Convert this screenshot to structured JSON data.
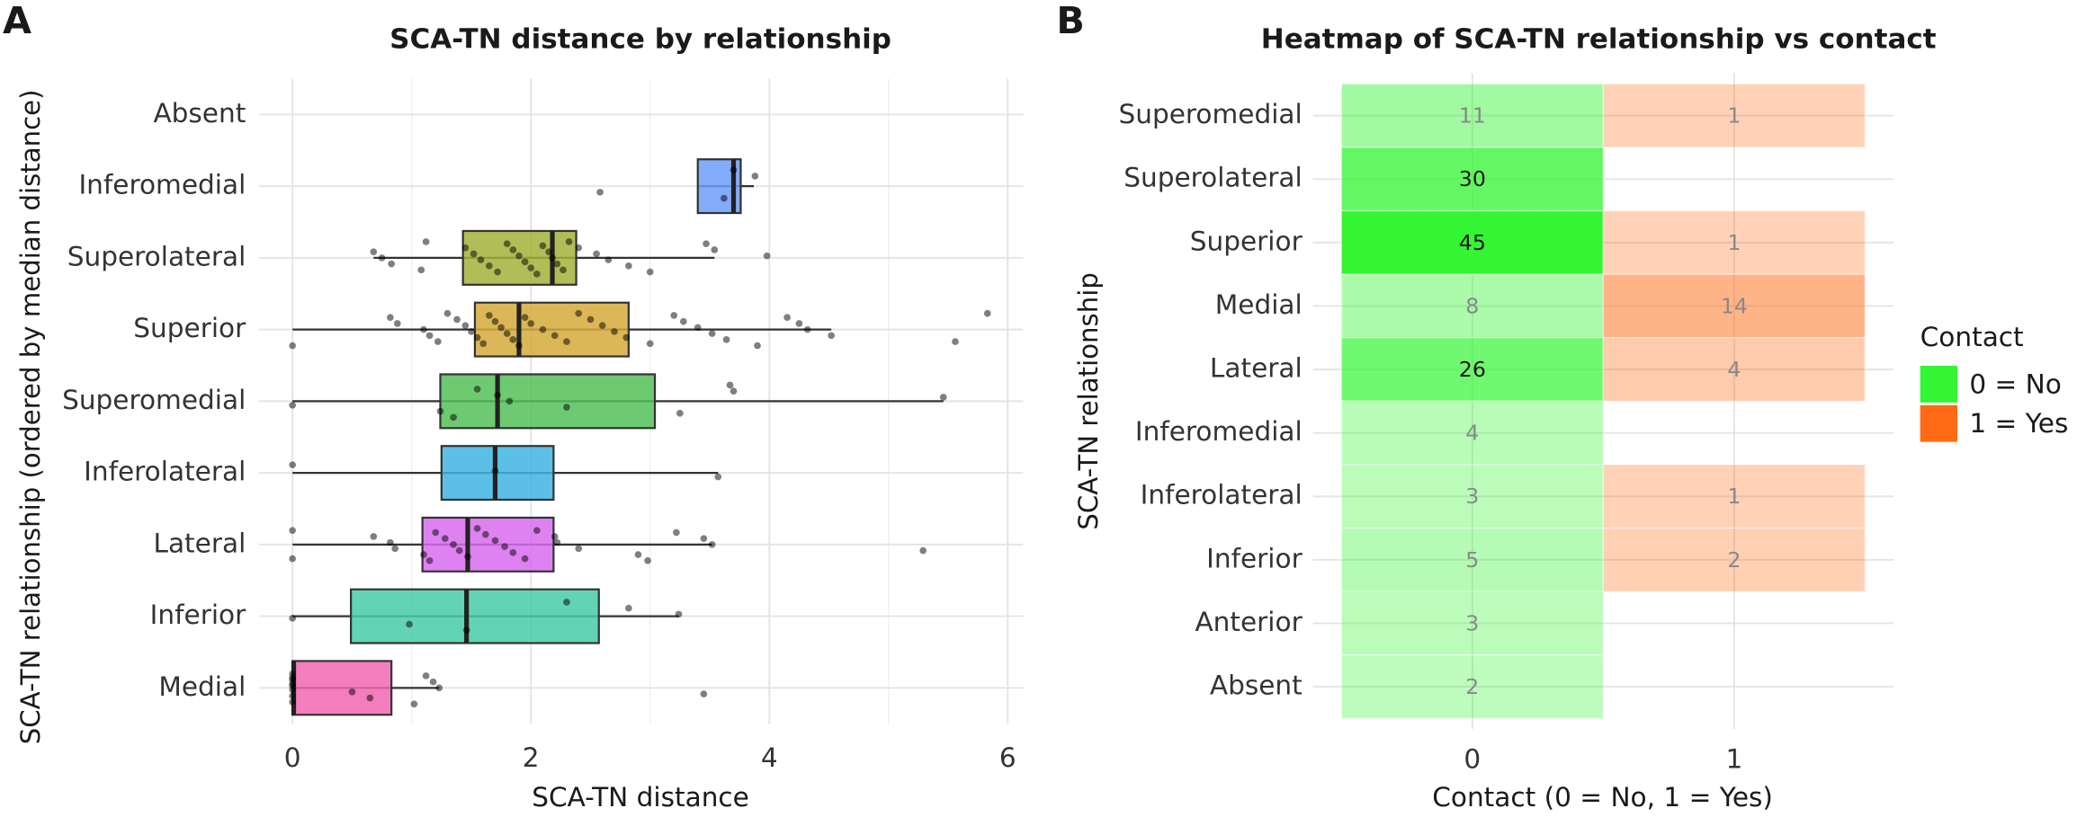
{
  "chart_data": [
    {
      "type": "box",
      "panel_label": "A",
      "title": "SCA-TN distance by relationship",
      "x_label": "SCA-TN distance",
      "y_label": "SCA-TN relationship (ordered by median distance)",
      "categories": [
        "Absent",
        "Inferomedial",
        "Superolateral",
        "Superior",
        "Superomedial",
        "Inferolateral",
        "Lateral",
        "Inferior",
        "Medial"
      ],
      "boxes": [
        null,
        {
          "color": "#6c9cf9",
          "min": 3.4,
          "q1": 3.4,
          "median": 3.7,
          "q3": 3.76,
          "max": 3.87,
          "points": [
            2.58,
            3.62,
            3.7,
            3.88
          ]
        },
        {
          "color": "#a3b13a",
          "min": 0.68,
          "q1": 1.43,
          "median": 2.18,
          "q3": 2.38,
          "max": 3.54,
          "points": [
            0.68,
            0.75,
            0.83,
            1.08,
            1.12,
            1.45,
            1.52,
            1.58,
            1.65,
            1.72,
            1.8,
            1.85,
            1.9,
            1.95,
            2.0,
            2.05,
            2.1,
            2.15,
            2.18,
            2.22,
            2.27,
            2.32,
            2.4,
            2.55,
            2.65,
            2.82,
            3.0,
            3.47,
            3.54,
            3.98
          ]
        },
        {
          "color": "#d6aa3a",
          "min": 0,
          "q1": 1.53,
          "median": 1.9,
          "q3": 2.82,
          "max": 4.52,
          "points": [
            0,
            0.82,
            0.88,
            1.1,
            1.15,
            1.22,
            1.3,
            1.38,
            1.45,
            1.5,
            1.55,
            1.6,
            1.65,
            1.7,
            1.75,
            1.8,
            1.85,
            1.9,
            1.95,
            2.0,
            2.1,
            2.2,
            2.3,
            2.4,
            2.5,
            2.6,
            2.7,
            2.8,
            3.0,
            3.2,
            3.28,
            3.4,
            3.52,
            3.64,
            3.9,
            4.15,
            4.25,
            4.32,
            4.52,
            5.56,
            5.83
          ]
        },
        {
          "color": "#53c158",
          "min": 0,
          "q1": 1.24,
          "median": 1.72,
          "q3": 3.04,
          "max": 5.46,
          "points": [
            0,
            1.24,
            1.35,
            1.55,
            1.72,
            1.82,
            2.3,
            3.25,
            3.67,
            3.7,
            5.46
          ]
        },
        {
          "color": "#3fb4e0",
          "min": 0,
          "q1": 1.25,
          "median": 1.7,
          "q3": 2.19,
          "max": 3.57,
          "points": [
            0,
            1.7,
            3.57
          ]
        },
        {
          "color": "#d86cf0",
          "min": 0,
          "q1": 1.09,
          "median": 1.47,
          "q3": 2.19,
          "max": 3.52,
          "points": [
            0,
            0,
            0.68,
            0.82,
            0.86,
            1.1,
            1.15,
            1.2,
            1.28,
            1.35,
            1.4,
            1.47,
            1.55,
            1.62,
            1.7,
            1.78,
            1.85,
            1.95,
            2.05,
            2.2,
            2.22,
            2.4,
            2.9,
            2.98,
            3.22,
            3.45,
            3.52,
            5.29
          ]
        },
        {
          "color": "#46cba6",
          "min": 0,
          "q1": 0.49,
          "median": 1.46,
          "q3": 2.57,
          "max": 3.24,
          "points": [
            0,
            0.98,
            1.46,
            2.3,
            2.82,
            3.24
          ]
        },
        {
          "color": "#f266b2",
          "min": 0,
          "q1": 0,
          "median": 0.01,
          "q3": 0.83,
          "max": 1.23,
          "points": [
            0,
            0,
            0,
            0,
            0,
            0,
            0,
            0,
            0.5,
            0.65,
            1.02,
            1.12,
            1.18,
            1.23,
            3.45
          ]
        }
      ],
      "xlim": [
        -0.28,
        6.13
      ],
      "xticks": [
        0,
        2,
        4,
        6
      ],
      "minor_xticks": [
        1,
        3,
        5
      ],
      "grid": true
    },
    {
      "type": "heatmap",
      "panel_label": "B",
      "title": "Heatmap of SCA-TN relationship vs contact",
      "x_label": "Contact (0 = No, 1 = Yes)",
      "y_label": "SCA-TN relationship",
      "rows": [
        "Superomedial",
        "Superolateral",
        "Superior",
        "Medial",
        "Lateral",
        "Inferomedial",
        "Inferolateral",
        "Inferior",
        "Anterior",
        "Absent"
      ],
      "columns": [
        "0",
        "1"
      ],
      "values": [
        [
          11,
          1
        ],
        [
          30,
          null
        ],
        [
          45,
          1
        ],
        [
          8,
          14
        ],
        [
          26,
          4
        ],
        [
          4,
          null
        ],
        [
          3,
          1
        ],
        [
          5,
          2
        ],
        [
          3,
          null
        ],
        [
          2,
          null
        ]
      ],
      "colors": [
        "#33f533",
        "#ff6a14"
      ],
      "legend": {
        "title": "Contact",
        "entries": [
          "0 = No",
          "1 = Yes"
        ],
        "position": "right"
      },
      "grid": true
    }
  ]
}
